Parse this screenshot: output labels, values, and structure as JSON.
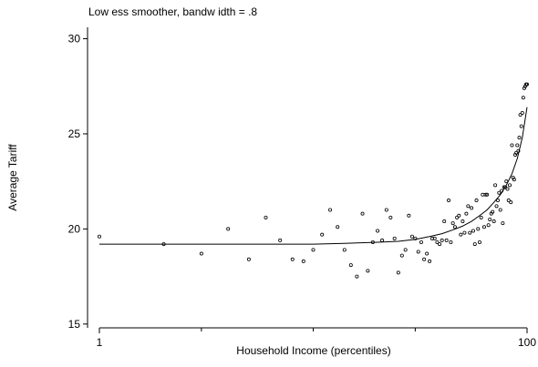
{
  "chart_data": {
    "type": "scatter",
    "title": "Low ess smoother, bandw idth = .8",
    "xlabel": "Household Income (percentiles)",
    "ylabel": "Average Tariff",
    "x_scale": "log",
    "xlim": [
      1,
      100
    ],
    "ylim": [
      14.8,
      30.6
    ],
    "x_ticks": [
      1,
      100
    ],
    "x_tick_labels": [
      "1",
      "100"
    ],
    "x_minor_ticks": [
      3,
      10,
      30
    ],
    "y_ticks": [
      15,
      20,
      25,
      30
    ],
    "y_tick_labels": [
      "15",
      "20",
      "25",
      "30"
    ],
    "grid": false,
    "legend": "none",
    "series": [
      {
        "kind": "points",
        "x": [
          1,
          2,
          3,
          4,
          5,
          6,
          7,
          8,
          9,
          10,
          11,
          12,
          13,
          14,
          15,
          16,
          17,
          18,
          19,
          20,
          21,
          22,
          23,
          24,
          25,
          26,
          27,
          28,
          29,
          30,
          31,
          32,
          33,
          34,
          35,
          36,
          37,
          38,
          39,
          40,
          41,
          42,
          43,
          44,
          45,
          46,
          47,
          48,
          49,
          50,
          51,
          52,
          53,
          54,
          55,
          56,
          57,
          58,
          59,
          60,
          61,
          62,
          63,
          64,
          65,
          66,
          67,
          68,
          69,
          70,
          71,
          72,
          73,
          74,
          75,
          76,
          77,
          78,
          79,
          80,
          81,
          82,
          83,
          84,
          85,
          86,
          87,
          88,
          89,
          90,
          91,
          92,
          93,
          94,
          95,
          96,
          97,
          98,
          99,
          100
        ],
        "y": [
          19.6,
          19.2,
          18.7,
          20.0,
          18.4,
          20.6,
          19.4,
          18.4,
          18.3,
          18.9,
          19.7,
          21.0,
          20.1,
          18.9,
          18.1,
          17.5,
          20.8,
          17.8,
          19.3,
          19.9,
          19.4,
          21.0,
          20.6,
          19.5,
          17.7,
          18.6,
          18.9,
          20.7,
          19.6,
          19.5,
          18.8,
          19.3,
          18.4,
          18.7,
          18.3,
          19.5,
          19.5,
          19.3,
          19.2,
          19.4,
          20.4,
          19.4,
          21.5,
          19.3,
          20.3,
          20.1,
          20.6,
          20.7,
          19.7,
          20.4,
          19.8,
          20.8,
          21.2,
          19.8,
          21.1,
          19.9,
          19.2,
          21.5,
          20.0,
          19.3,
          20.6,
          21.8,
          20.1,
          21.8,
          21.8,
          20.2,
          20.5,
          20.8,
          20.9,
          20.4,
          22.3,
          21.2,
          21.5,
          21.9,
          21.0,
          22.0,
          20.3,
          22.2,
          22.2,
          22.5,
          22.1,
          21.5,
          22.3,
          21.4,
          24.4,
          22.7,
          22.6,
          23.9,
          24.0,
          24.4,
          24.1,
          24.8,
          26.0,
          25.4,
          26.1,
          26.9,
          27.4,
          27.5,
          27.6,
          27.6
        ],
        "marker": "hollow-circle",
        "color": "#000000"
      },
      {
        "kind": "line",
        "x": [
          1,
          5,
          10,
          15,
          20,
          25,
          30,
          35,
          40,
          45,
          50,
          55,
          60,
          65,
          70,
          75,
          80,
          85,
          90,
          95,
          100
        ],
        "y": [
          19.2,
          19.2,
          19.2,
          19.25,
          19.3,
          19.35,
          19.45,
          19.6,
          19.75,
          19.95,
          20.15,
          20.4,
          20.7,
          21.0,
          21.4,
          21.8,
          22.3,
          22.9,
          23.7,
          24.8,
          26.4
        ],
        "color": "#000000"
      }
    ]
  }
}
